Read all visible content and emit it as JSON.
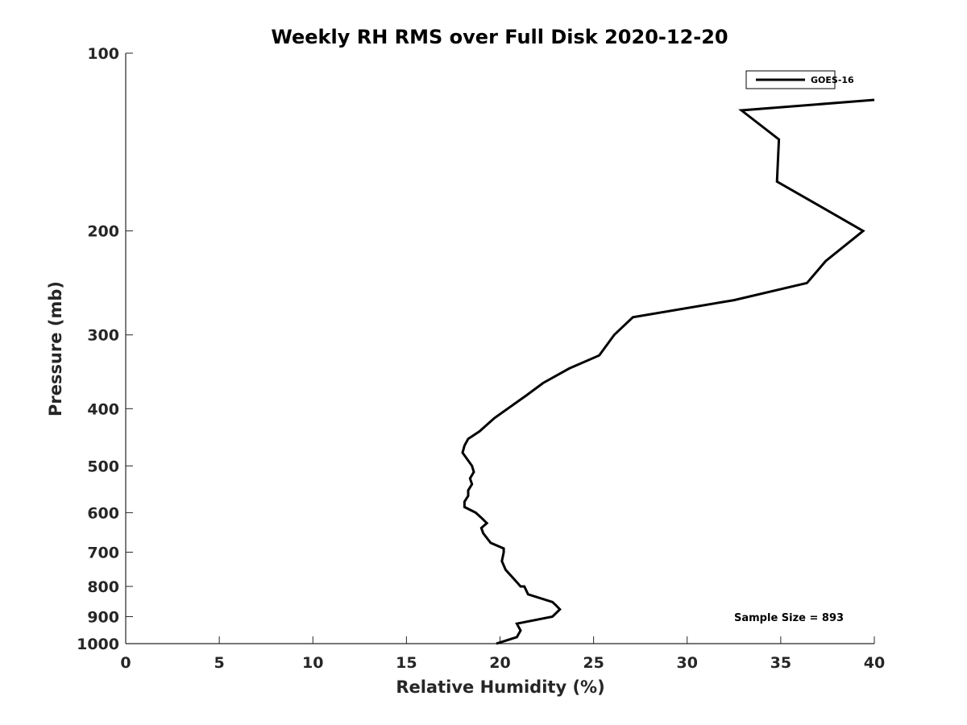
{
  "chart_data": {
    "type": "line",
    "title": "Weekly RH RMS over Full Disk 2020-12-20",
    "xlabel": "Relative Humidity (%)",
    "ylabel": "Pressure (mb)",
    "xlim": [
      0,
      40
    ],
    "ylim": [
      100,
      1000
    ],
    "y_scale": "log",
    "y_reversed": true,
    "x_ticks": [
      0,
      5,
      10,
      15,
      20,
      25,
      30,
      35,
      40
    ],
    "y_ticks": [
      100,
      200,
      300,
      400,
      500,
      600,
      700,
      800,
      900,
      1000
    ],
    "grid": false,
    "legend_position": "top-right",
    "annotation": "Sample Size = 893",
    "series": [
      {
        "name": "GOES-16",
        "color": "#000000",
        "points": [
          [
            19.8,
            1000
          ],
          [
            20.9,
            975
          ],
          [
            21.1,
            950
          ],
          [
            20.9,
            925
          ],
          [
            22.8,
            900
          ],
          [
            23.2,
            875
          ],
          [
            23.0,
            862
          ],
          [
            22.8,
            850
          ],
          [
            21.5,
            825
          ],
          [
            21.3,
            800
          ],
          [
            21.1,
            800
          ],
          [
            20.9,
            787
          ],
          [
            20.3,
            750
          ],
          [
            20.1,
            725
          ],
          [
            20.2,
            700
          ],
          [
            20.2,
            690
          ],
          [
            19.5,
            675
          ],
          [
            19.1,
            650
          ],
          [
            19.0,
            637
          ],
          [
            19.3,
            625
          ],
          [
            19.0,
            612
          ],
          [
            18.7,
            600
          ],
          [
            18.1,
            587
          ],
          [
            18.1,
            575
          ],
          [
            18.3,
            562
          ],
          [
            18.3,
            550
          ],
          [
            18.5,
            537
          ],
          [
            18.4,
            525
          ],
          [
            18.6,
            512
          ],
          [
            18.5,
            500
          ],
          [
            18.0,
            475
          ],
          [
            18.1,
            462
          ],
          [
            18.3,
            450
          ],
          [
            18.9,
            437
          ],
          [
            19.7,
            415
          ],
          [
            21.4,
            380
          ],
          [
            22.3,
            362
          ],
          [
            23.7,
            342
          ],
          [
            25.3,
            325
          ],
          [
            26.1,
            300
          ],
          [
            27.1,
            280
          ],
          [
            32.5,
            262
          ],
          [
            36.4,
            245
          ],
          [
            37.4,
            225
          ],
          [
            39.4,
            200
          ],
          [
            37.8,
            187
          ],
          [
            34.8,
            165
          ],
          [
            34.9,
            140
          ],
          [
            32.9,
            125
          ],
          [
            40.0,
            120
          ]
        ]
      }
    ]
  }
}
